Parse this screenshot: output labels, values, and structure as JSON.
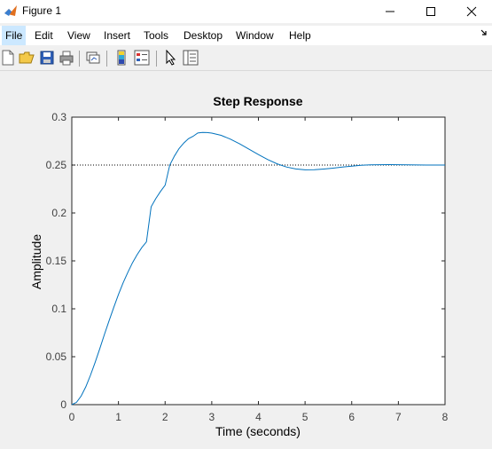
{
  "window": {
    "title": "Figure 1"
  },
  "menu": {
    "items": [
      "File",
      "Edit",
      "View",
      "Insert",
      "Tools",
      "Desktop",
      "Window",
      "Help"
    ]
  },
  "icons": [
    "new-figure-icon",
    "open-file-icon",
    "save-icon",
    "print-icon",
    "link-plot-icon",
    "insert-colorbar-icon",
    "insert-legend-icon",
    "edit-plot-pointer-icon",
    "open-property-inspector-icon"
  ],
  "colors": {
    "line": "#0072bd",
    "axes_text": "#404040",
    "final_value_line": "#000000"
  },
  "chart_data": {
    "type": "line",
    "title": "Step Response",
    "xlabel": "Time (seconds)",
    "ylabel": "Amplitude",
    "xlim": [
      0,
      8
    ],
    "ylim": [
      0,
      0.3
    ],
    "xticks": [
      0,
      1,
      2,
      3,
      4,
      5,
      6,
      7,
      8
    ],
    "xtick_labels": [
      "0",
      "1",
      "2",
      "3",
      "4",
      "5",
      "6",
      "7",
      "8"
    ],
    "yticks": [
      0,
      0.05,
      0.1,
      0.15,
      0.2,
      0.25,
      0.3
    ],
    "ytick_labels": [
      "0",
      "0.05",
      "0.1",
      "0.15",
      "0.2",
      "0.25",
      "0.3"
    ],
    "grid": false,
    "final_value_line": 0.25,
    "series": [
      {
        "x": [
          0,
          0.1,
          0.2,
          0.3,
          0.4,
          0.5,
          0.6,
          0.7,
          0.8,
          0.9,
          1.0,
          1.1,
          1.2,
          1.3,
          1.4,
          1.5,
          1.6,
          1.7,
          1.8,
          1.9,
          2.0,
          2.1,
          2.2,
          2.3,
          2.4,
          2.5,
          2.6,
          2.7,
          2.8,
          2.9,
          3.0,
          3.2,
          3.4,
          3.6,
          3.8,
          4.0,
          4.2,
          4.4,
          4.6,
          4.8,
          5.0,
          5.2,
          5.4,
          5.6,
          5.8,
          6.0,
          6.2,
          6.4,
          6.6,
          6.8,
          7.0,
          7.2,
          7.4,
          7.6,
          7.8,
          8.0
        ],
        "y": [
          0,
          0.0024,
          0.0089,
          0.0186,
          0.0306,
          0.0441,
          0.0585,
          0.0732,
          0.0877,
          0.1017,
          0.1149,
          0.1271,
          0.1381,
          0.148,
          0.1565,
          0.1638,
          0.1698,
          0.2065,
          0.2149,
          0.2224,
          0.229,
          0.25,
          0.2594,
          0.2672,
          0.273,
          0.2775,
          0.28,
          0.2834,
          0.284,
          0.2839,
          0.2833,
          0.281,
          0.277,
          0.272,
          0.2665,
          0.2609,
          0.2557,
          0.2513,
          0.248,
          0.2459,
          0.245,
          0.2451,
          0.2458,
          0.2468,
          0.2479,
          0.2489,
          0.2497,
          0.2502,
          0.2504,
          0.2505,
          0.2504,
          0.2503,
          0.2501,
          0.25,
          0.25,
          0.25
        ]
      }
    ]
  }
}
